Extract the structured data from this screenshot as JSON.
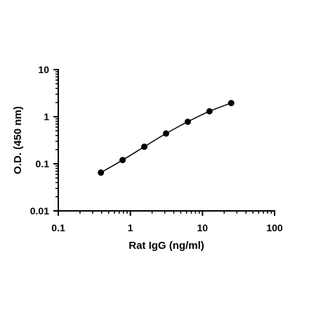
{
  "chart_data": {
    "type": "scatter",
    "title": "",
    "xlabel": "Rat IgG (ng/ml)",
    "ylabel": "O.D. (450 nm)",
    "x_scale": "log",
    "y_scale": "log",
    "xlim": [
      0.1,
      100
    ],
    "ylim": [
      0.01,
      10
    ],
    "x_ticks": [
      "0.1",
      "1",
      "10",
      "100"
    ],
    "y_ticks": [
      "0.01",
      "0.1",
      "1",
      "10"
    ],
    "grid": false,
    "legend": "none",
    "line": "fitted curve through points",
    "marker_color": "#000000",
    "series": [
      {
        "x": [
          0.39,
          0.78,
          1.56,
          3.125,
          6.25,
          12.5,
          25
        ],
        "y": [
          0.065,
          0.12,
          0.23,
          0.44,
          0.78,
          1.3,
          1.95
        ]
      }
    ]
  }
}
